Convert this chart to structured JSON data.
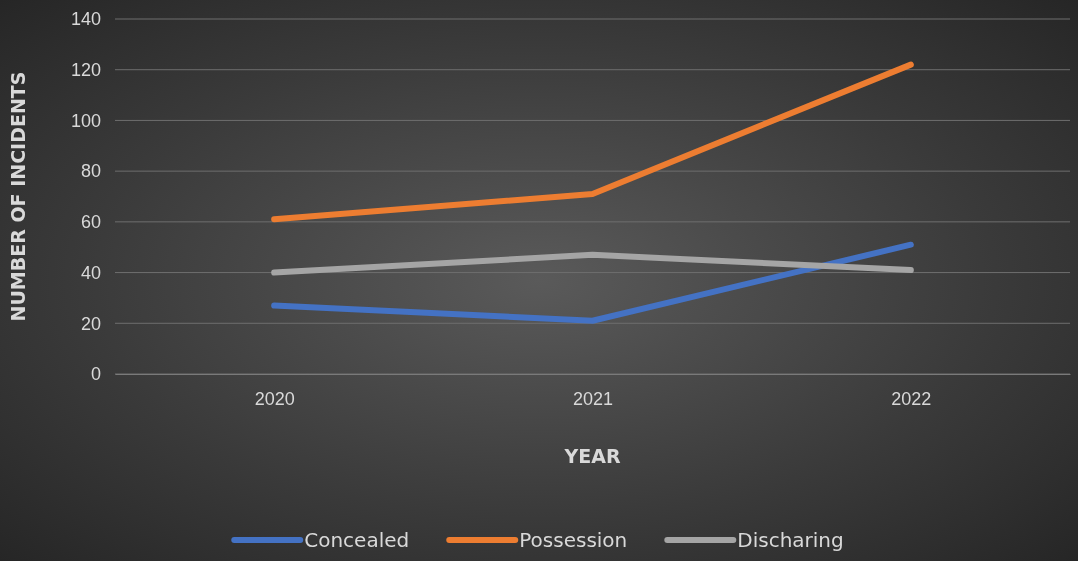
{
  "chart_data": {
    "type": "line",
    "xlabel": "YEAR",
    "ylabel": "NUMBER OF INCIDENTS",
    "categories": [
      "2020",
      "2021",
      "2022"
    ],
    "series": [
      {
        "name": "Concealed",
        "color": "#4472c4",
        "values": [
          27,
          21,
          51
        ]
      },
      {
        "name": "Possession",
        "color": "#ed7d31",
        "values": [
          61,
          71,
          122
        ]
      },
      {
        "name": "Discharing",
        "color": "#a5a5a5",
        "values": [
          40,
          47,
          41
        ]
      }
    ],
    "ylim": [
      0,
      140
    ],
    "yticks": [
      0,
      20,
      40,
      60,
      80,
      100,
      120,
      140
    ],
    "grid": "y",
    "legend": "bottom",
    "marker": "none",
    "line_style": "solid"
  }
}
